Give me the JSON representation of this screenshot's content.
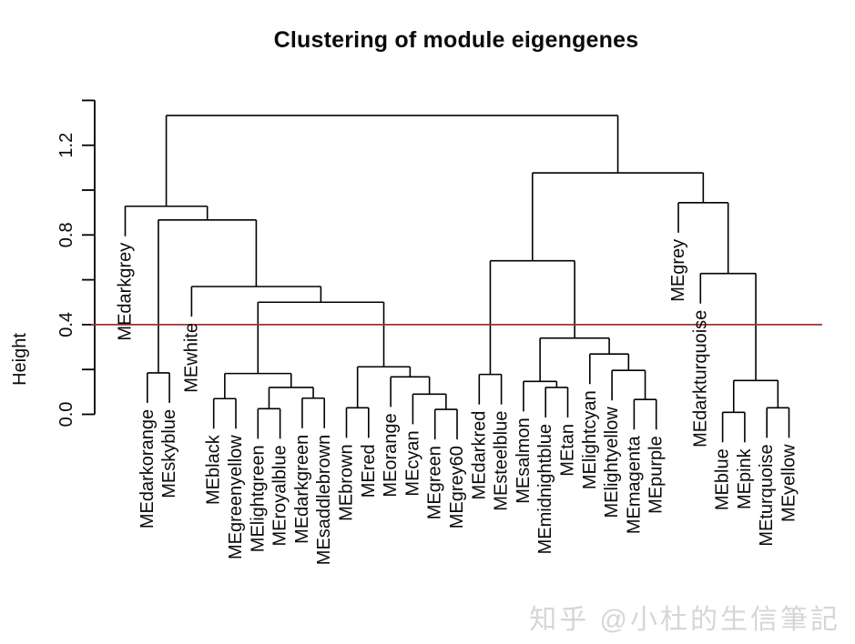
{
  "title": "Clustering of module eigengenes",
  "y_axis": {
    "label": "Height",
    "ticks": [
      {
        "v": 0.0,
        "label": "0.0"
      },
      {
        "v": 0.2
      },
      {
        "v": 0.4,
        "label": "0.4"
      },
      {
        "v": 0.6
      },
      {
        "v": 0.8,
        "label": "0.8"
      },
      {
        "v": 1.0
      },
      {
        "v": 1.2,
        "label": "1.2"
      },
      {
        "v": 1.4
      }
    ]
  },
  "cut_line": {
    "height": 0.4,
    "color": "#9e3330"
  },
  "watermark": "知乎 @小杜的生信筆記",
  "chart_data": {
    "type": "dendrogram",
    "title": "Clustering of module eigengenes",
    "ylabel": "Height",
    "ylim": [
      0,
      1.4
    ],
    "grid": false,
    "hang": 0.134,
    "cut_height": 0.4,
    "leaves": [
      "MEdarkgrey",
      "MEdarkorange",
      "MEskyblue",
      "MEwhite",
      "MEblack",
      "MEgreenyellow",
      "MElightgreen",
      "MEroyalblue",
      "MEdarkgreen",
      "MEsaddlebrown",
      "MEbrown",
      "MEred",
      "MEorange",
      "MEcyan",
      "MEgreen",
      "MEgrey60",
      "MEdarkred",
      "MEsteelblue",
      "MEsalmon",
      "MEmidnightblue",
      "MEtan",
      "MElightcyan",
      "MElightyellow",
      "MEmagenta",
      "MEpurple",
      "MEgrey",
      "MEdarkturquoise",
      "MEblue",
      "MEpink",
      "MEturquoise",
      "MEyellow"
    ],
    "tree": {
      "h": 1.333,
      "c": [
        {
          "h": 0.928,
          "c": [
            "MEdarkgrey",
            {
              "h": 0.867,
              "c": [
                {
                  "h": 0.185,
                  "c": [
                    "MEdarkorange",
                    "MEskyblue"
                  ]
                },
                {
                  "h": 0.57,
                  "c": [
                    "MEwhite",
                    {
                      "h": 0.5,
                      "c": [
                        {
                          "h": 0.182,
                          "c": [
                            {
                              "h": 0.07,
                              "c": [
                                "MEblack",
                                "MEgreenyellow"
                              ]
                            },
                            {
                              "h": 0.12,
                              "c": [
                                {
                                  "h": 0.025,
                                  "c": [
                                    "MElightgreen",
                                    "MEroyalblue"
                                  ]
                                },
                                {
                                  "h": 0.072,
                                  "c": [
                                    "MEdarkgreen",
                                    "MEsaddlebrown"
                                  ]
                                }
                              ]
                            }
                          ]
                        },
                        {
                          "h": 0.212,
                          "c": [
                            {
                              "h": 0.029,
                              "c": [
                                "MEbrown",
                                "MEred"
                              ]
                            },
                            {
                              "h": 0.167,
                              "c": [
                                "MEorange",
                                {
                                  "h": 0.09,
                                  "c": [
                                    "MEcyan",
                                    {
                                      "h": 0.022,
                                      "c": [
                                        "MEgreen",
                                        "MEgrey60"
                                      ]
                                    }
                                  ]
                                }
                              ]
                            }
                          ]
                        }
                      ]
                    }
                  ]
                }
              ]
            }
          ]
        },
        {
          "h": 1.077,
          "c": [
            {
              "h": 0.685,
              "c": [
                {
                  "h": 0.178,
                  "c": [
                    "MEdarkred",
                    "MEsteelblue"
                  ]
                },
                {
                  "h": 0.34,
                  "c": [
                    {
                      "h": 0.147,
                      "c": [
                        "MEsalmon",
                        {
                          "h": 0.12,
                          "c": [
                            "MEmidnightblue",
                            "MEtan"
                          ]
                        }
                      ]
                    },
                    {
                      "h": 0.269,
                      "c": [
                        "MElightcyan",
                        {
                          "h": 0.196,
                          "c": [
                            "MElightyellow",
                            {
                              "h": 0.066,
                              "c": [
                                "MEmagenta",
                                "MEpurple"
                              ]
                            }
                          ]
                        }
                      ]
                    }
                  ]
                }
              ]
            },
            {
              "h": 0.944,
              "c": [
                "MEgrey",
                {
                  "h": 0.628,
                  "c": [
                    "MEdarkturquoise",
                    {
                      "h": 0.151,
                      "c": [
                        {
                          "h": 0.009,
                          "c": [
                            "MEblue",
                            "MEpink"
                          ]
                        },
                        {
                          "h": 0.029,
                          "c": [
                            "MEturquoise",
                            "MEyellow"
                          ]
                        }
                      ]
                    }
                  ]
                }
              ]
            }
          ]
        }
      ]
    }
  }
}
